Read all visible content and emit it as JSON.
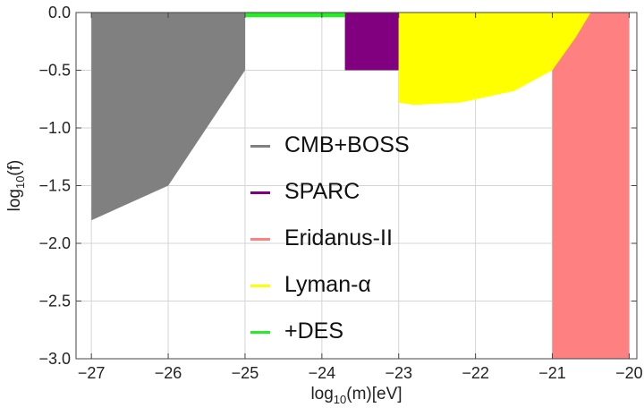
{
  "chart_data": {
    "type": "area",
    "x_axis": {
      "label_main": "log",
      "label_sub": "10",
      "label_rest": "(m)[eV]",
      "range": [
        -27.2,
        -19.9
      ],
      "ticks": [
        -27,
        -26,
        -25,
        -24,
        -23,
        -22,
        -21,
        -20
      ],
      "tick_labels": [
        "−27",
        "−26",
        "−25",
        "−24",
        "−23",
        "−22",
        "−21",
        "−20"
      ]
    },
    "y_axis": {
      "label_main": "log",
      "label_sub": "10",
      "label_rest": "(f)",
      "range": [
        -3.0,
        0.0
      ],
      "ticks": [
        0.0,
        -0.5,
        -1.0,
        -1.5,
        -2.0,
        -2.5,
        -3.0
      ],
      "tick_labels": [
        "0.0",
        "−0.5",
        "−1.0",
        "−1.5",
        "−2.0",
        "−2.5",
        "−3.0"
      ]
    },
    "grid": true,
    "legend_position": "center-left",
    "series": [
      {
        "name": "CMB+BOSS",
        "color": "#808080",
        "region": [
          [
            -27.0,
            0.0
          ],
          [
            -25.0,
            0.0
          ],
          [
            -25.0,
            -0.5
          ],
          [
            -26.0,
            -1.5
          ],
          [
            -27.0,
            -1.8
          ]
        ]
      },
      {
        "name": "SPARC",
        "color": "#800080",
        "region": [
          [
            -23.7,
            0.0
          ],
          [
            -23.0,
            0.0
          ],
          [
            -23.0,
            -0.5
          ],
          [
            -23.7,
            -0.5
          ]
        ]
      },
      {
        "name": "Eridanus-II",
        "color": "#ff8080",
        "region": [
          [
            -21.0,
            0.0
          ],
          [
            -20.0,
            0.0
          ],
          [
            -20.0,
            -3.0
          ],
          [
            -21.0,
            -3.0
          ]
        ]
      },
      {
        "name": "Lyman-α",
        "color": "#ffff00",
        "region": [
          [
            -23.0,
            0.0
          ],
          [
            -20.5,
            0.0
          ],
          [
            -20.7,
            -0.22
          ],
          [
            -21.0,
            -0.5
          ],
          [
            -21.5,
            -0.68
          ],
          [
            -22.2,
            -0.78
          ],
          [
            -22.8,
            -0.8
          ],
          [
            -23.0,
            -0.78
          ]
        ]
      },
      {
        "name": "+DES",
        "color": "#22ee22",
        "region": [
          [
            -25.0,
            0.0
          ],
          [
            -23.7,
            0.0
          ],
          [
            -23.7,
            -0.04
          ],
          [
            -25.0,
            -0.04
          ]
        ]
      }
    ],
    "legend_entries": [
      {
        "label": "CMB+BOSS",
        "color": "#808080"
      },
      {
        "label": "SPARC",
        "color": "#800080"
      },
      {
        "label": "Eridanus-II",
        "color": "#ff8080"
      },
      {
        "label": "Lyman-α",
        "color": "#ffff00"
      },
      {
        "label": "+DES",
        "color": "#22ee22"
      }
    ]
  }
}
